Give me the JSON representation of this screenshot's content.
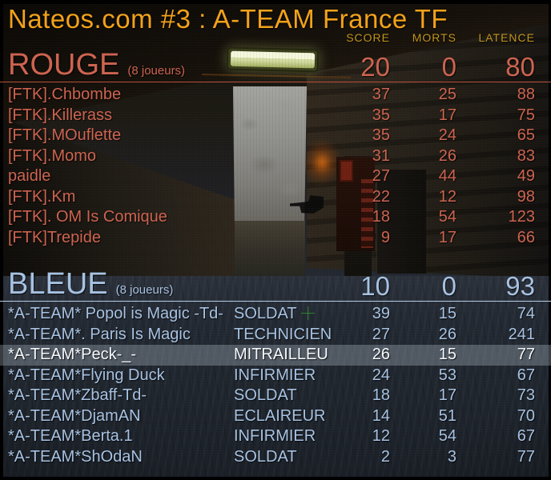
{
  "window": {
    "title": "Nateos.com #3 : A-TEAM France TF"
  },
  "columns": [
    {
      "key": "score",
      "label": "SCORE"
    },
    {
      "key": "morts",
      "label": "MORTS"
    },
    {
      "key": "latence",
      "label": "LATENCE"
    }
  ],
  "teams": [
    {
      "id": "rouge",
      "name": "ROUGE",
      "count_label": "(8 joueurs)",
      "score": "20",
      "morts": "0",
      "latence": "80",
      "players": [
        {
          "name": "[FTK].Chbombe",
          "class": "",
          "score": "37",
          "morts": "25",
          "latence": "88",
          "highlighted": false
        },
        {
          "name": "[FTK].Killerass",
          "class": "",
          "score": "35",
          "morts": "17",
          "latence": "75",
          "highlighted": false
        },
        {
          "name": "[FTK].MOuflette",
          "class": "",
          "score": "35",
          "morts": "24",
          "latence": "65",
          "highlighted": false
        },
        {
          "name": "[FTK].Momo",
          "class": "",
          "score": "31",
          "morts": "26",
          "latence": "83",
          "highlighted": false
        },
        {
          "name": "paidle",
          "class": "",
          "score": "27",
          "morts": "44",
          "latence": "49",
          "highlighted": false
        },
        {
          "name": "[FTK].Km",
          "class": "",
          "score": "22",
          "morts": "12",
          "latence": "98",
          "highlighted": false
        },
        {
          "name": "[FTK]. OM Is Comique",
          "class": "",
          "score": "18",
          "morts": "54",
          "latence": "123",
          "highlighted": false
        },
        {
          "name": "[FTK]Trepide",
          "class": "",
          "score": "9",
          "morts": "17",
          "latence": "66",
          "highlighted": false
        }
      ]
    },
    {
      "id": "bleue",
      "name": "BLEUE",
      "count_label": "(8 joueurs)",
      "score": "10",
      "morts": "0",
      "latence": "93",
      "players": [
        {
          "name": "*A-TEAM* Popol is Magic -Td-",
          "class": "SOLDAT",
          "score": "39",
          "morts": "15",
          "latence": "74",
          "highlighted": false
        },
        {
          "name": "*A-TEAM*. Paris Is Magic",
          "class": "TECHNICIEN",
          "score": "27",
          "morts": "26",
          "latence": "241",
          "highlighted": false
        },
        {
          "name": "*A-TEAM*Peck-_-",
          "class": "MITRAILLEU",
          "score": "26",
          "morts": "15",
          "latence": "77",
          "highlighted": true
        },
        {
          "name": "*A-TEAM*Flying Duck",
          "class": "INFIRMIER",
          "score": "24",
          "morts": "53",
          "latence": "67",
          "highlighted": false
        },
        {
          "name": "*A-TEAM*Zbaff-Td-",
          "class": "SOLDAT",
          "score": "18",
          "morts": "17",
          "latence": "73",
          "highlighted": false
        },
        {
          "name": "*A-TEAM*DjamAN",
          "class": "ECLAIREUR",
          "score": "14",
          "morts": "51",
          "latence": "70",
          "highlighted": false
        },
        {
          "name": "*A-TEAM*Berta.1",
          "class": "INFIRMIER",
          "score": "12",
          "morts": "54",
          "latence": "67",
          "highlighted": false
        },
        {
          "name": "*A-TEAM*ShOdaN",
          "class": "SOLDAT",
          "score": "2",
          "morts": "3",
          "latence": "77",
          "highlighted": false
        }
      ]
    }
  ],
  "colors": {
    "title": "#f2a21a",
    "column_header": "#c2951d",
    "rouge": "#cd6450",
    "rouge_line": "#b5503c",
    "bleue": "#a7c2e2",
    "bleue_line": "#b9cfe8",
    "highlight_text": "#f6f9fc",
    "crosshair": "#2f8f2f"
  }
}
